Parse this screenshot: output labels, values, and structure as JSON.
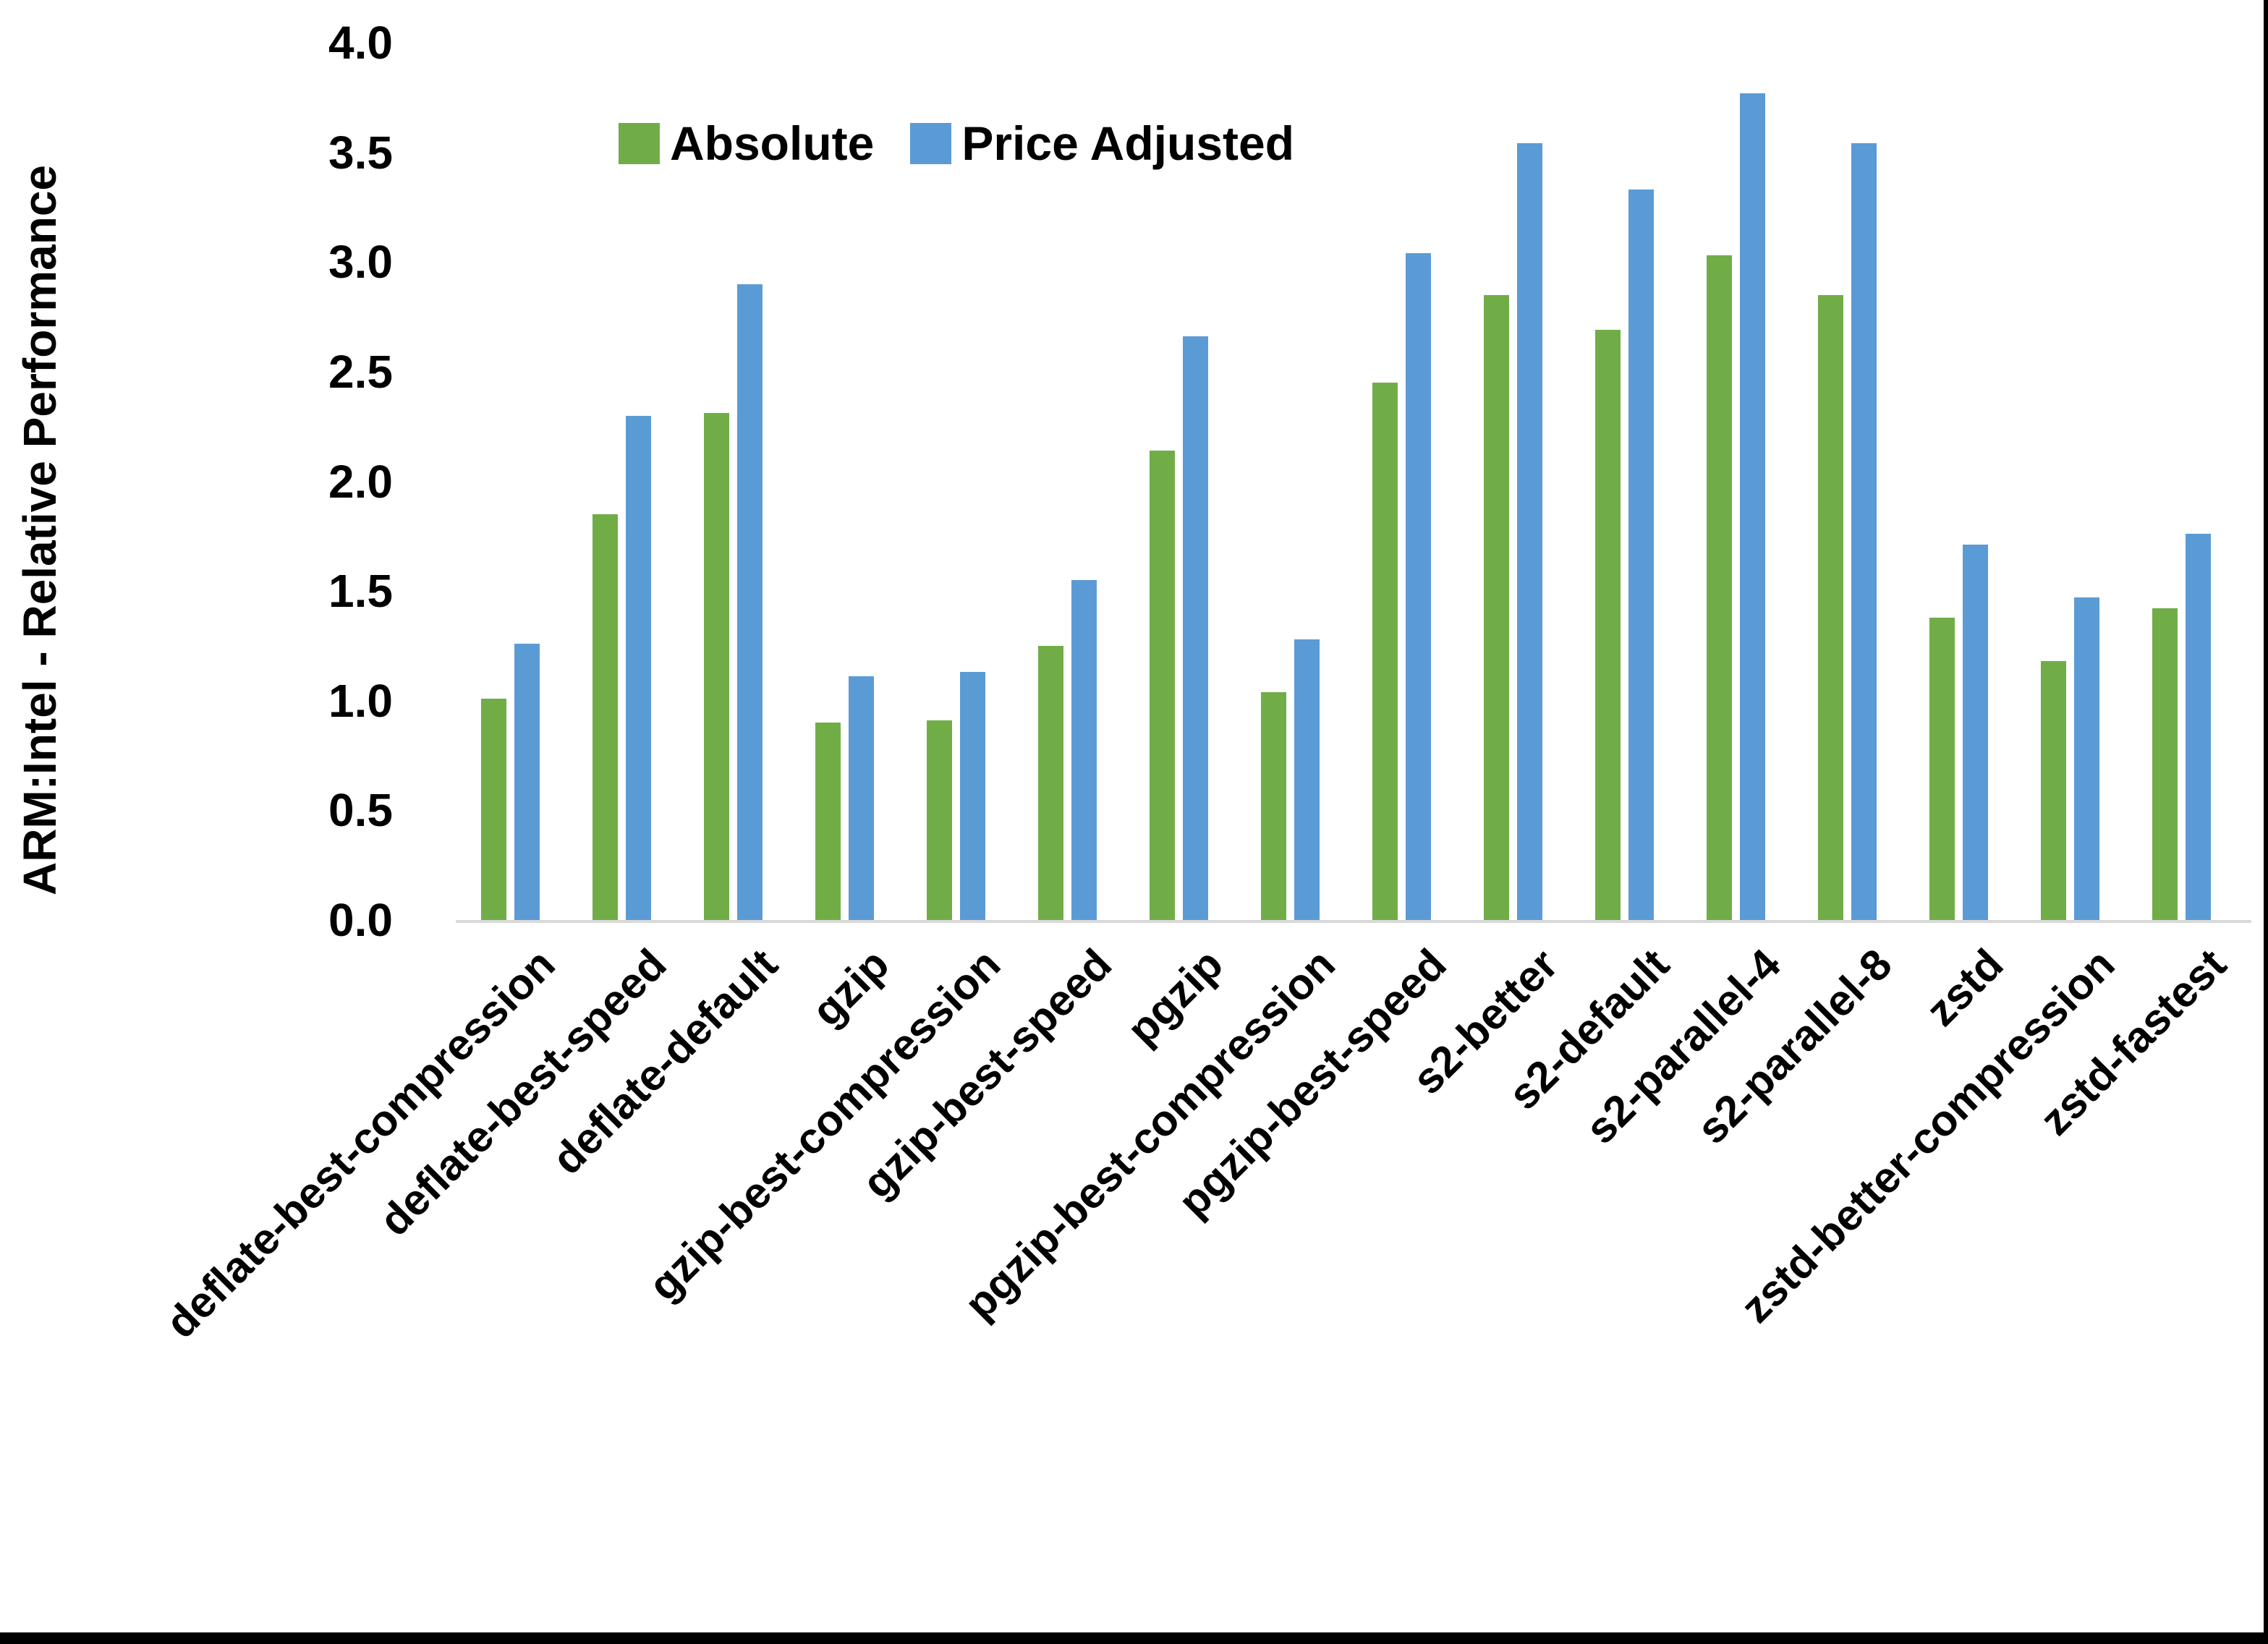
{
  "chart_data": {
    "type": "bar",
    "title": "",
    "xlabel": "",
    "ylabel": "ARM:Intel - Relative Performance",
    "ylim": [
      0.0,
      4.0
    ],
    "ytick_step": 0.5,
    "yticks": [
      "4.0",
      "3.5",
      "3.0",
      "2.5",
      "2.0",
      "1.5",
      "1.0",
      "0.5",
      "0.0"
    ],
    "grid": false,
    "legend_position": "top-center",
    "categories": [
      "deflate-best-compression",
      "deflate-best-speed",
      "deflate-default",
      "gzip",
      "gzip-best-compression",
      "gzip-best-speed",
      "pgzip",
      "pgzip-best-compression",
      "pgzip-best-speed",
      "s2-better",
      "s2-default",
      "s2-parallel-4",
      "s2-parallel-8",
      "zstd",
      "zstd-better-compression",
      "zstd-fastest"
    ],
    "series": [
      {
        "name": "Absolute",
        "color": "#70AD47",
        "values": [
          1.01,
          1.85,
          2.31,
          0.9,
          0.91,
          1.25,
          2.14,
          1.04,
          2.45,
          2.85,
          2.69,
          3.03,
          2.85,
          1.38,
          1.18,
          1.42
        ]
      },
      {
        "name": "Price Adjusted",
        "color": "#5B9BD5",
        "values": [
          1.26,
          2.3,
          2.9,
          1.11,
          1.13,
          1.55,
          2.66,
          1.28,
          3.04,
          3.54,
          3.33,
          3.77,
          3.54,
          1.71,
          1.47,
          1.76
        ]
      }
    ]
  },
  "colors": {
    "axis_line": "#d9d9d9",
    "text": "#000000",
    "background": "#ffffff"
  }
}
